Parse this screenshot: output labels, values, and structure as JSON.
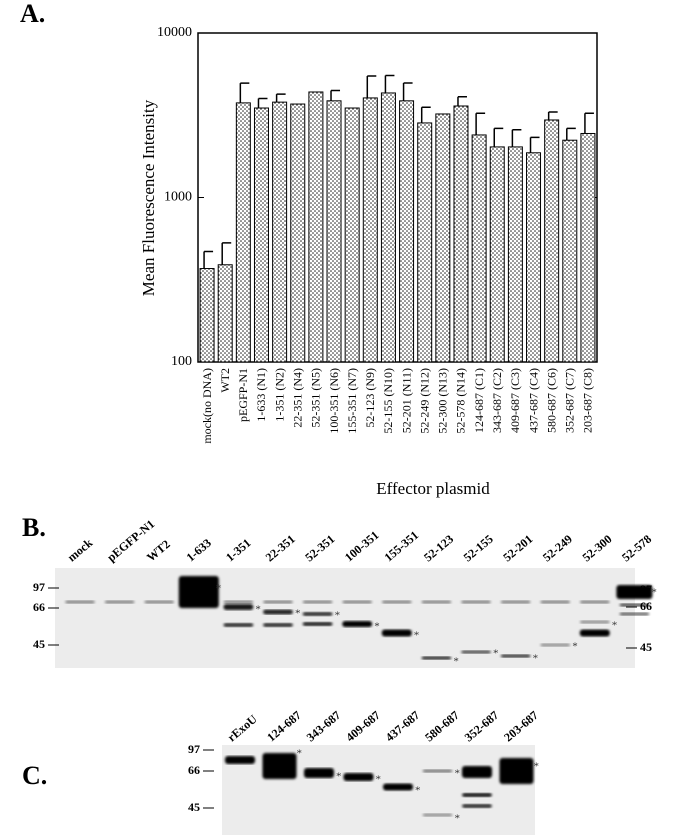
{
  "chart_data": {
    "type": "bar",
    "panel_label": "A.",
    "y_label": "Mean Fluorescence Intensity",
    "x_label": "Effector plasmid",
    "categories": [
      "mock(no DNA)",
      "WT2",
      "pEGFP-N1",
      "1-633 (N1)",
      "1-351 (N2)",
      "22-351 (N4)",
      "52-351 (N5)",
      "100-351 (N6)",
      "155-351 (N7)",
      "52-123 (N9)",
      "52-155 (N10)",
      "52-201 (N11)",
      "52-249 (N12)",
      "52-300 (N13)",
      "52-578 (N14)",
      "124-687 (C1)",
      "343-687 (C2)",
      "409-687 (C3)",
      "437-687 (C4)",
      "580-687 (C6)",
      "352-687 (C7)",
      "203-687 (C8)"
    ],
    "values": [
      370,
      390,
      3760,
      3500,
      3800,
      3700,
      4380,
      3870,
      3500,
      4030,
      4320,
      3870,
      2840,
      3220,
      3600,
      2400,
      2030,
      2030,
      1870,
      2960,
      2230,
      2450
    ],
    "errors": [
      100,
      140,
      1200,
      500,
      450,
      null,
      null,
      600,
      null,
      1450,
      1200,
      1100,
      700,
      null,
      500,
      850,
      600,
      550,
      450,
      350,
      400,
      800
    ],
    "ylim": [
      100,
      10000
    ],
    "yticks": [
      100,
      1000,
      10000
    ],
    "log_scale": true,
    "color": "#000000"
  },
  "blot_b": {
    "panel_label": "B.",
    "lanes": [
      "mock",
      "pEGFP-N1",
      "WT2",
      "1-633",
      "1-351",
      "22-351",
      "52-351",
      "100-351",
      "155-351",
      "52-123",
      "52-155",
      "52-201",
      "52-249",
      "52-300",
      "52-578"
    ],
    "markers": [
      "97",
      "66",
      "45"
    ],
    "asterisk": "*"
  },
  "blot_c": {
    "panel_label": "C.",
    "lanes": [
      "rExoU",
      "124-687",
      "343-687",
      "409-687",
      "437-687",
      "580-687",
      "352-687",
      "203-687"
    ],
    "markers": [
      "97",
      "66",
      "45"
    ],
    "asterisk": "*"
  }
}
